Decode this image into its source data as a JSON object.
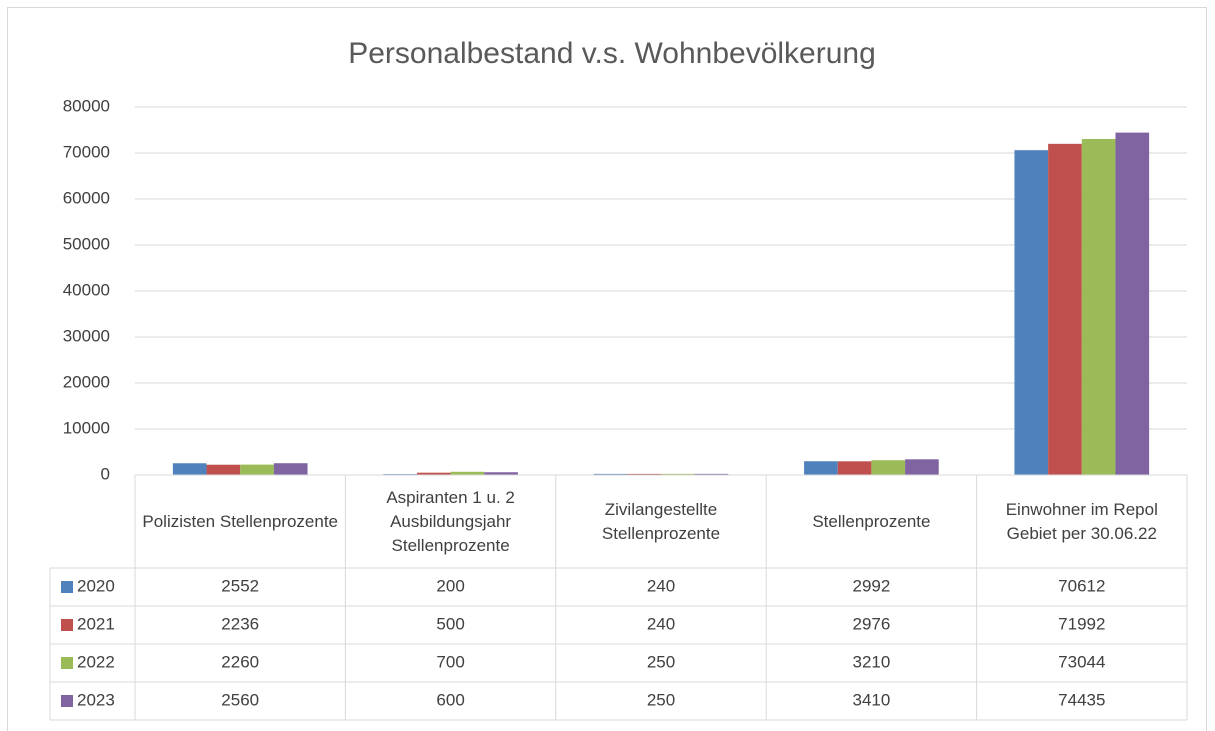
{
  "chart_data": {
    "type": "bar",
    "title": "Personalbestand v.s. Wohnbevölkerung",
    "categories": [
      "Polizisten Stellenprozente",
      "Aspiranten 1 u. 2 Ausbildungsjahr Stellenprozente",
      "Zivilangestellte Stellenprozente",
      "Stellenprozente",
      "Einwohner im Repol Gebiet per 30.06.22"
    ],
    "series": [
      {
        "name": "2020",
        "color": "#4f81bd",
        "values": [
          2552,
          200,
          240,
          2992,
          70612
        ]
      },
      {
        "name": "2021",
        "color": "#c0504d",
        "values": [
          2236,
          500,
          240,
          2976,
          71992
        ]
      },
      {
        "name": "2022",
        "color": "#9bbb59",
        "values": [
          2260,
          700,
          250,
          3210,
          73044
        ]
      },
      {
        "name": "2023",
        "color": "#8064a2",
        "values": [
          2560,
          600,
          250,
          3410,
          74435
        ]
      }
    ],
    "ylim": [
      0,
      80000
    ],
    "yticks": [
      0,
      10000,
      20000,
      30000,
      40000,
      50000,
      60000,
      70000,
      80000
    ],
    "grid": true,
    "data_table": true
  }
}
